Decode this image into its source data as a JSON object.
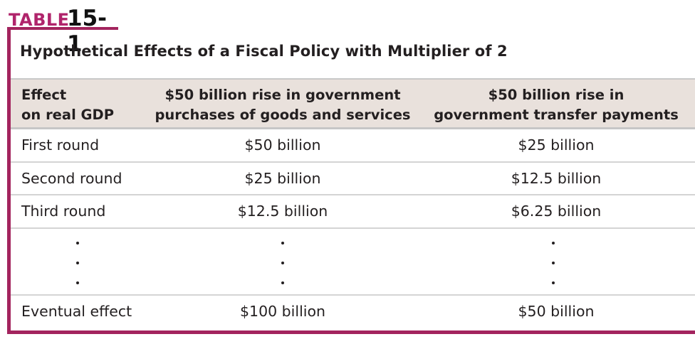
{
  "table_label": {
    "word": "TABLE",
    "number": "15-1"
  },
  "caption": "Hypothetical Effects of a Fiscal Policy with Multiplier of 2",
  "headers": {
    "col1": {
      "line1": "Effect",
      "line2": "on real GDP"
    },
    "col2": {
      "line1": "$50 billion rise in government",
      "line2": "purchases of goods and services"
    },
    "col3": {
      "line1": "$50 billion rise in",
      "line2": "government transfer payments"
    }
  },
  "rows": [
    {
      "effect": "First round",
      "purchases": "$50 billion",
      "transfers": "$25 billion"
    },
    {
      "effect": "Second round",
      "purchases": "$25 billion",
      "transfers": "$12.5 billion"
    },
    {
      "effect": "Third round",
      "purchases": "$12.5 billion",
      "transfers": "$6.25 billion"
    }
  ],
  "final_row": {
    "effect": "Eventual effect",
    "purchases": "$100 billion",
    "transfers": "$50 billion"
  },
  "colors": {
    "accent": "#a3245e",
    "header_bg": "#e9e1dc",
    "label_text": "#b0246b"
  }
}
